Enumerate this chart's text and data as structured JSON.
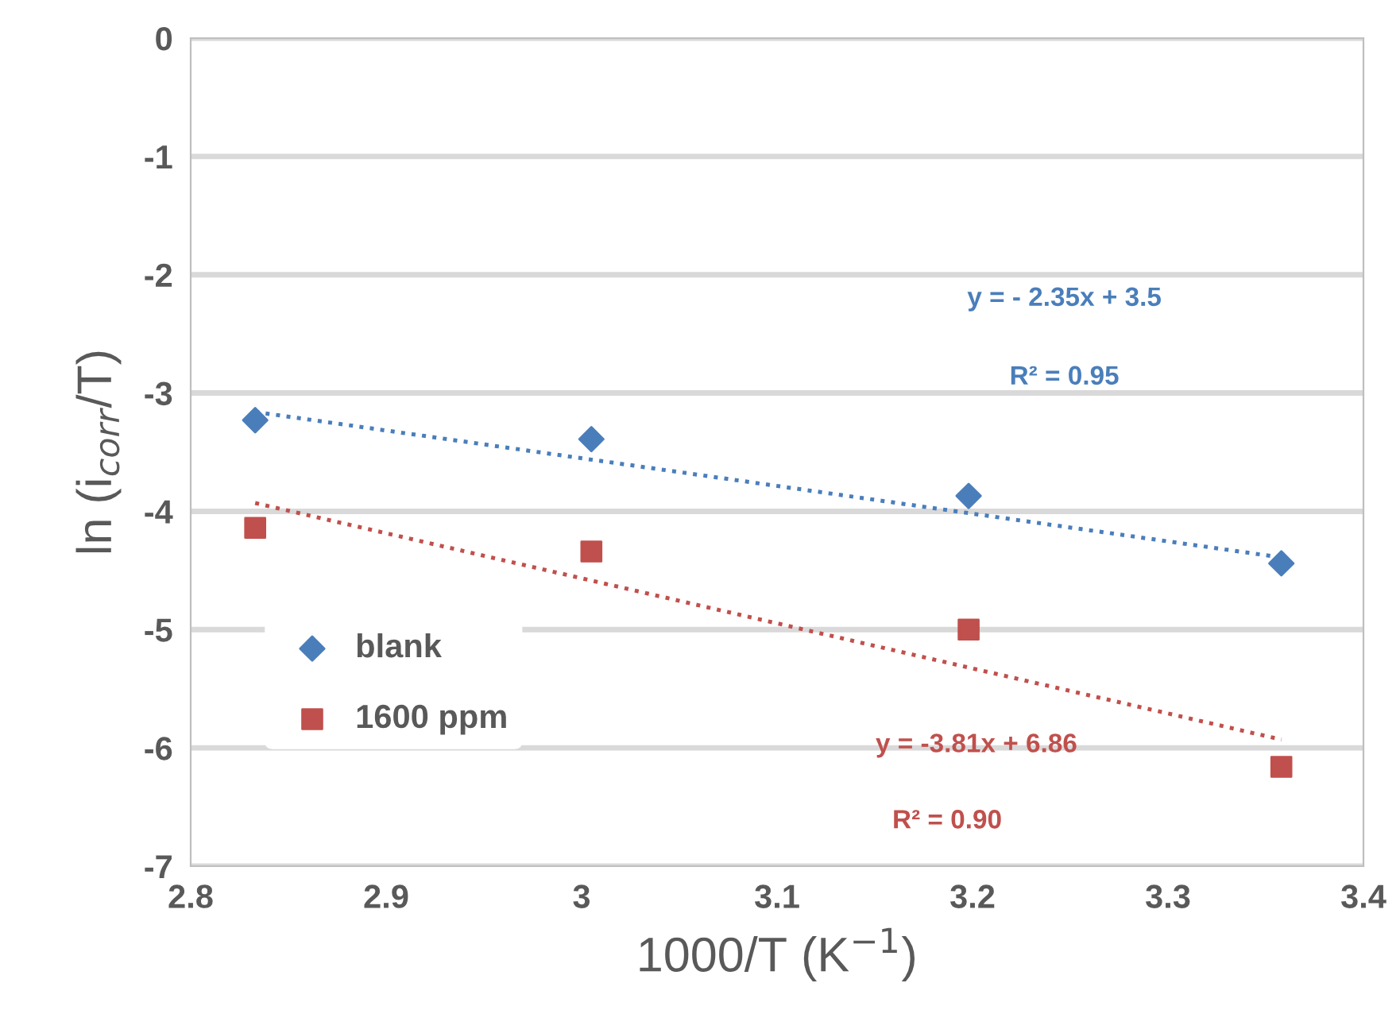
{
  "chart_data": {
    "type": "scatter",
    "xlabel": "1000/T (K$^{−1}$)",
    "ylabel": "ln (i$_{corr}$/T)",
    "series": [
      {
        "name": "blank",
        "color": "#4a7ebb",
        "marker": "diamond",
        "x": [
          2.833,
          3.005,
          3.198,
          3.358
        ],
        "values": [
          -3.23,
          -3.39,
          -3.87,
          -4.44
        ]
      },
      {
        "name": "1600 ppm",
        "color": "#c0504d",
        "marker": "square",
        "x": [
          2.833,
          3.005,
          3.198,
          3.358
        ],
        "values": [
          -4.14,
          -4.34,
          -5.0,
          -6.16
        ]
      },
      {
        "type": "line",
        "color": "#4a7ebb",
        "line_style": "dotted",
        "x": [
          2.833,
          3.358
        ],
        "values": [
          -3.16,
          -4.39
        ]
      },
      {
        "type": "line",
        "color": "#c0504d",
        "line_style": "dotted",
        "x": [
          2.833,
          3.358
        ],
        "values": [
          -3.93,
          -5.93
        ]
      }
    ],
    "annotations": [
      "y = - 2.35x + 3.5",
      "R² = 0.95",
      "y = -3.81x + 6.86",
      "R² = 0.90"
    ],
    "xlim": [
      2.8,
      3.4
    ],
    "xticks": [
      2.8,
      2.9,
      {
        "value": 3,
        "label": "3"
      },
      3.1,
      3.2,
      3.3,
      3.4
    ],
    "ylim": [
      -7,
      0
    ],
    "yticks": [
      -7,
      -6,
      -5,
      -4,
      -3,
      -2,
      -1,
      0
    ],
    "grid": "y",
    "legend": "center left"
  }
}
